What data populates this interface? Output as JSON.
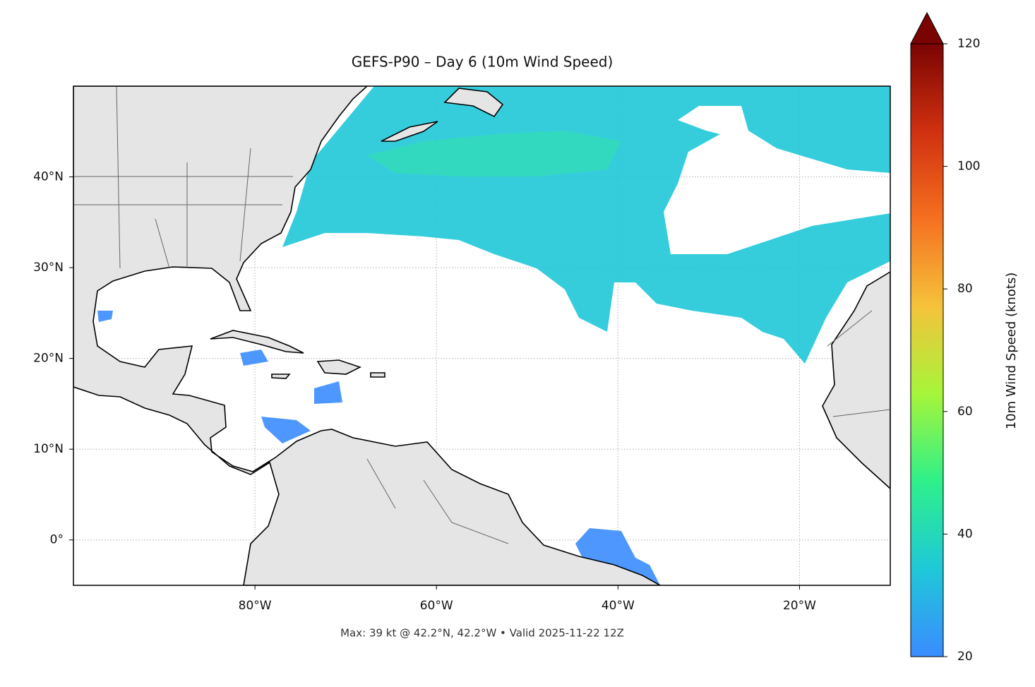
{
  "chart_data": {
    "type": "map",
    "title": "GEFS-P90 – Day 6 (10m Wind Speed)",
    "caption": "Max: 39 kt @ 42.2°N, 42.2°W • Valid 2025-11-22 12Z",
    "xlim": [
      -100,
      -10
    ],
    "ylim": [
      -5,
      50
    ],
    "xticks": [
      {
        "value": -80,
        "label": "80°W"
      },
      {
        "value": -60,
        "label": "60°W"
      },
      {
        "value": -40,
        "label": "40°W"
      },
      {
        "value": -20,
        "label": "20°W"
      }
    ],
    "yticks": [
      {
        "value": 0,
        "label": "0°"
      },
      {
        "value": 10,
        "label": "10°N"
      },
      {
        "value": 20,
        "label": "20°N"
      },
      {
        "value": 30,
        "label": "30°N"
      },
      {
        "value": 40,
        "label": "40°N"
      }
    ],
    "grid": true,
    "colorbar": {
      "label": "10m Wind Speed (knots)",
      "lim": [
        20,
        120
      ],
      "ticks": [
        20,
        40,
        60,
        80,
        100,
        120
      ],
      "extend": "max",
      "colormap": [
        "#3a8cff",
        "#1fc8d8",
        "#2ef08a",
        "#a6f53a",
        "#f5c33a",
        "#f57020",
        "#d03010",
        "#7a0403"
      ]
    }
  }
}
